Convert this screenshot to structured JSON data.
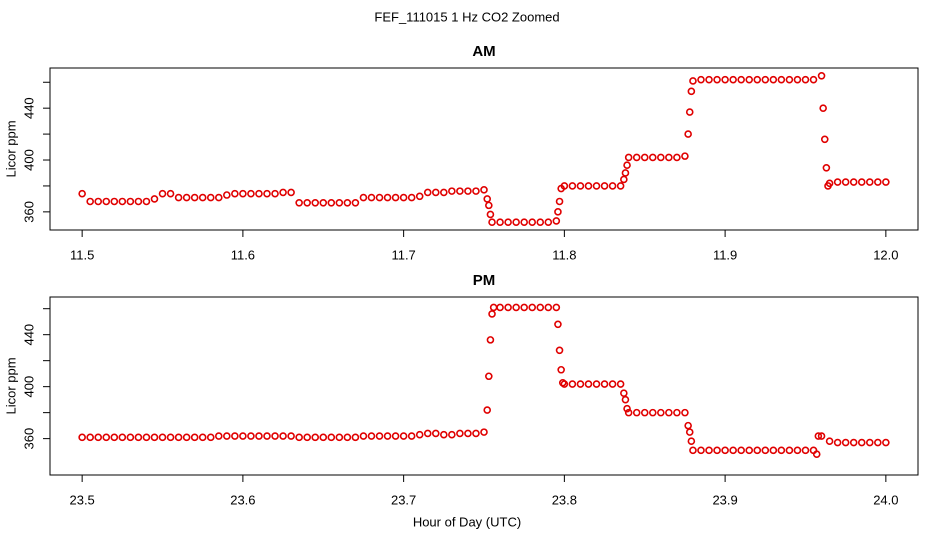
{
  "title": "FEF_111015  1 Hz CO2 Zoomed",
  "xlabel": "Hour of Day (UTC)",
  "chart_data": [
    {
      "type": "scatter",
      "title": "AM",
      "ylabel": "Licor ppm",
      "color": "#e00000",
      "xlim": [
        11.48,
        12.02
      ],
      "xticks": [
        11.5,
        11.6,
        11.7,
        11.8,
        11.9,
        {
          "value": 12,
          "label": "12.0"
        }
      ],
      "ylim": [
        346,
        471
      ],
      "yticks": [
        360,
        400,
        440
      ],
      "yminor": [
        380,
        420,
        460
      ],
      "x": [
        11.5,
        11.505,
        11.51,
        11.515,
        11.52,
        11.525,
        11.53,
        11.535,
        11.54,
        11.545,
        11.55,
        11.555,
        11.56,
        11.565,
        11.57,
        11.575,
        11.58,
        11.585,
        11.59,
        11.595,
        11.6,
        11.605,
        11.61,
        11.615,
        11.62,
        11.625,
        11.63,
        11.635,
        11.64,
        11.645,
        11.65,
        11.655,
        11.66,
        11.665,
        11.67,
        11.675,
        11.68,
        11.685,
        11.69,
        11.695,
        11.7,
        11.705,
        11.71,
        11.715,
        11.72,
        11.725,
        11.73,
        11.735,
        11.74,
        11.745,
        11.75,
        11.752,
        11.753,
        11.754,
        11.755,
        11.76,
        11.765,
        11.77,
        11.775,
        11.78,
        11.785,
        11.79,
        11.795,
        11.796,
        11.797,
        11.798,
        11.8,
        11.805,
        11.81,
        11.815,
        11.82,
        11.825,
        11.83,
        11.835,
        11.837,
        11.838,
        11.839,
        11.84,
        11.845,
        11.85,
        11.855,
        11.86,
        11.865,
        11.87,
        11.875,
        11.877,
        11.878,
        11.879,
        11.88,
        11.885,
        11.89,
        11.895,
        11.9,
        11.905,
        11.91,
        11.915,
        11.92,
        11.925,
        11.93,
        11.935,
        11.94,
        11.945,
        11.95,
        11.955,
        11.96,
        11.961,
        11.962,
        11.963,
        11.964,
        11.965,
        11.97,
        11.975,
        11.98,
        11.985,
        11.99,
        11.995,
        12.0
      ],
      "values": [
        374,
        368,
        368,
        368,
        368,
        368,
        368,
        368,
        368,
        370,
        374,
        374,
        371,
        371,
        371,
        371,
        371,
        371,
        373,
        374,
        374,
        374,
        374,
        374,
        374,
        375,
        375,
        367,
        367,
        367,
        367,
        367,
        367,
        367,
        367,
        371,
        371,
        371,
        371,
        371,
        371,
        371,
        372,
        375,
        375,
        375,
        376,
        376,
        376,
        376,
        377,
        370,
        365,
        358,
        352,
        352,
        352,
        352,
        352,
        352,
        352,
        352,
        353,
        360,
        368,
        378,
        380,
        380,
        380,
        380,
        380,
        380,
        380,
        380,
        385,
        390,
        396,
        402,
        402,
        402,
        402,
        402,
        402,
        402,
        403,
        420,
        437,
        453,
        461,
        462,
        462,
        462,
        462,
        462,
        462,
        462,
        462,
        462,
        462,
        462,
        462,
        462,
        462,
        462,
        465,
        440,
        416,
        394,
        380,
        382,
        383,
        383,
        383,
        383,
        383,
        383,
        383
      ]
    },
    {
      "type": "scatter",
      "title": "PM",
      "ylabel": "Licor ppm",
      "color": "#e00000",
      "xlim": [
        23.48,
        24.02
      ],
      "xticks": [
        23.5,
        23.6,
        23.7,
        23.8,
        23.9,
        {
          "value": 24,
          "label": "24.0"
        }
      ],
      "ylim": [
        332,
        469
      ],
      "yticks": [
        360,
        400,
        440
      ],
      "yminor": [
        380,
        420,
        460
      ],
      "x": [
        23.5,
        23.505,
        23.51,
        23.515,
        23.52,
        23.525,
        23.53,
        23.535,
        23.54,
        23.545,
        23.55,
        23.555,
        23.56,
        23.565,
        23.57,
        23.575,
        23.58,
        23.585,
        23.59,
        23.595,
        23.6,
        23.605,
        23.61,
        23.615,
        23.62,
        23.625,
        23.63,
        23.635,
        23.64,
        23.645,
        23.65,
        23.655,
        23.66,
        23.665,
        23.67,
        23.675,
        23.68,
        23.685,
        23.69,
        23.695,
        23.7,
        23.705,
        23.71,
        23.715,
        23.72,
        23.725,
        23.73,
        23.735,
        23.74,
        23.745,
        23.75,
        23.752,
        23.753,
        23.754,
        23.755,
        23.756,
        23.76,
        23.765,
        23.77,
        23.775,
        23.78,
        23.785,
        23.79,
        23.795,
        23.796,
        23.797,
        23.798,
        23.799,
        23.8,
        23.805,
        23.81,
        23.815,
        23.82,
        23.825,
        23.83,
        23.835,
        23.837,
        23.838,
        23.839,
        23.84,
        23.845,
        23.85,
        23.855,
        23.86,
        23.865,
        23.87,
        23.875,
        23.877,
        23.878,
        23.879,
        23.88,
        23.885,
        23.89,
        23.895,
        23.9,
        23.905,
        23.91,
        23.915,
        23.92,
        23.925,
        23.93,
        23.935,
        23.94,
        23.945,
        23.95,
        23.955,
        23.957,
        23.958,
        23.96,
        23.965,
        23.97,
        23.975,
        23.98,
        23.985,
        23.99,
        23.995,
        24.0
      ],
      "values": [
        361,
        361,
        361,
        361,
        361,
        361,
        361,
        361,
        361,
        361,
        361,
        361,
        361,
        361,
        361,
        361,
        361,
        362,
        362,
        362,
        362,
        362,
        362,
        362,
        362,
        362,
        362,
        361,
        361,
        361,
        361,
        361,
        361,
        361,
        361,
        362,
        362,
        362,
        362,
        362,
        362,
        362,
        363,
        364,
        364,
        363,
        363,
        364,
        364,
        364,
        365,
        382,
        408,
        436,
        456,
        461,
        461,
        461,
        461,
        461,
        461,
        461,
        461,
        461,
        448,
        428,
        413,
        403,
        402,
        402,
        402,
        402,
        402,
        402,
        402,
        402,
        395,
        390,
        383,
        380,
        380,
        380,
        380,
        380,
        380,
        380,
        380,
        370,
        365,
        358,
        351,
        351,
        351,
        351,
        351,
        351,
        351,
        351,
        351,
        351,
        351,
        351,
        351,
        351,
        351,
        351,
        348,
        362,
        362,
        358,
        357,
        357,
        357,
        357,
        357,
        357,
        357
      ]
    }
  ]
}
